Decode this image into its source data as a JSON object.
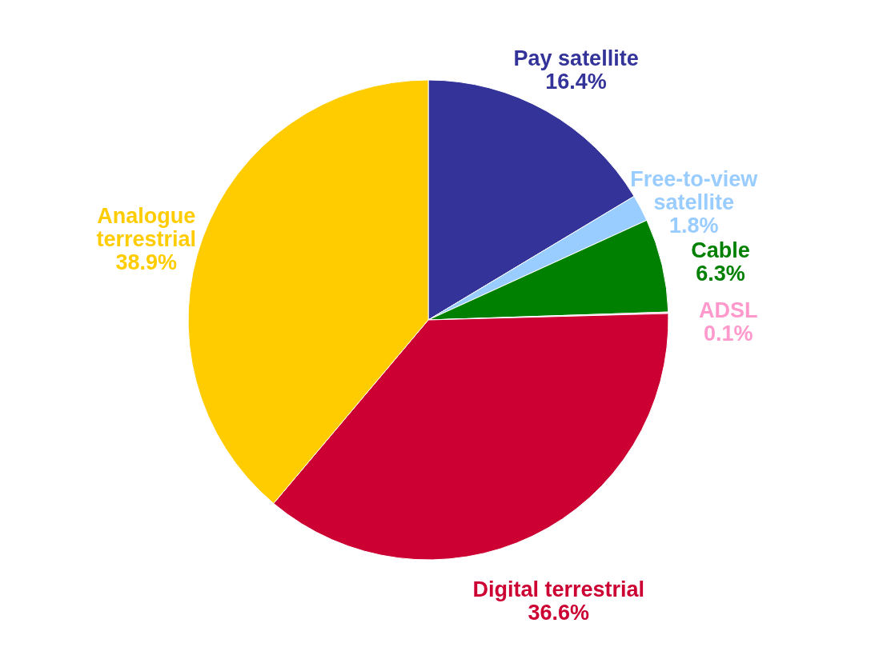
{
  "chart_data": {
    "type": "pie",
    "categories": [
      "Pay satellite",
      "Free-to-view satellite",
      "Cable",
      "ADSL",
      "Digital terrestrial",
      "Analogue terrestrial"
    ],
    "values": [
      16.4,
      1.8,
      6.3,
      0.1,
      36.6,
      38.9
    ],
    "colors": [
      "#333399",
      "#99ccff",
      "#008000",
      "#ff99cc",
      "#cc0033",
      "#ffcc00"
    ],
    "value_labels": [
      "16.4%",
      "1.8%",
      "6.3%",
      "0.1%",
      "36.6%",
      "38.9%"
    ],
    "legend": false
  }
}
